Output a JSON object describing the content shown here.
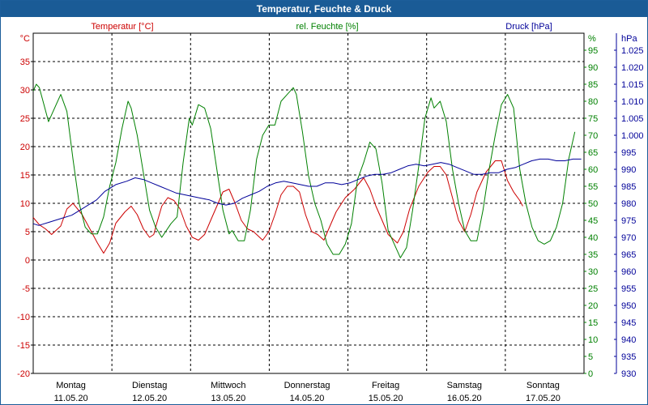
{
  "window": {
    "title": "Temperatur, Feuchte & Druck"
  },
  "chart_data": {
    "type": "line",
    "title": "Temperatur, Feuchte & Druck",
    "days": [
      {
        "name": "Montag",
        "date": "11.05.20"
      },
      {
        "name": "Dienstag",
        "date": "12.05.20"
      },
      {
        "name": "Mittwoch",
        "date": "13.05.20"
      },
      {
        "name": "Donnerstag",
        "date": "14.05.20"
      },
      {
        "name": "Freitag",
        "date": "15.05.20"
      },
      {
        "name": "Samstag",
        "date": "16.05.20"
      },
      {
        "name": "Sonntag",
        "date": "17.05.20"
      }
    ],
    "x_range_days": [
      0,
      7
    ],
    "axes": {
      "temperature": {
        "unit": "°C",
        "label": "Temperatur [°C]",
        "min": -20,
        "max": 40,
        "ticks": [
          -20,
          -15,
          -10,
          -5,
          0,
          5,
          10,
          15,
          20,
          25,
          30,
          35
        ],
        "color": "#cc0000"
      },
      "humidity": {
        "unit": "%",
        "label": "rel. Feuchte [%]",
        "min": 0,
        "max": 100,
        "ticks": [
          0,
          5,
          10,
          15,
          20,
          25,
          30,
          35,
          40,
          45,
          50,
          55,
          60,
          65,
          70,
          75,
          80,
          85,
          90,
          95
        ],
        "color": "#008000"
      },
      "pressure": {
        "unit": "hPa",
        "label": "Druck [hPa]",
        "min": 930,
        "max": 1030,
        "ticks": [
          "930",
          "935",
          "940",
          "945",
          "950",
          "955",
          "960",
          "965",
          "970",
          "975",
          "980",
          "985",
          "990",
          "995",
          "1.000",
          "1.005",
          "1.010",
          "1.015",
          "1.020",
          "1.025"
        ],
        "color": "#000099"
      }
    },
    "series": [
      {
        "name": "Temperatur [°C]",
        "axis": "temperature",
        "color": "#cc0000",
        "points": [
          [
            0.0,
            7.5
          ],
          [
            0.1,
            6.2
          ],
          [
            0.2,
            5.5
          ],
          [
            0.3,
            4.5
          ],
          [
            0.45,
            6
          ],
          [
            0.55,
            9
          ],
          [
            0.65,
            10
          ],
          [
            0.8,
            8
          ],
          [
            0.95,
            5
          ],
          [
            1.05,
            3
          ],
          [
            1.15,
            1.2
          ],
          [
            1.25,
            3
          ],
          [
            1.35,
            6.5
          ],
          [
            1.5,
            8.5
          ],
          [
            1.6,
            9.5
          ],
          [
            1.7,
            8
          ],
          [
            1.8,
            5.5
          ],
          [
            1.9,
            4
          ],
          [
            1.97,
            4.5
          ],
          [
            2.02,
            6.5
          ],
          [
            2.1,
            9.5
          ],
          [
            2.2,
            11
          ],
          [
            2.3,
            10.5
          ],
          [
            2.4,
            9
          ],
          [
            2.5,
            6
          ],
          [
            2.6,
            4
          ],
          [
            2.7,
            3.5
          ],
          [
            2.8,
            4.5
          ],
          [
            2.9,
            7
          ],
          [
            3.0,
            9.5
          ],
          [
            3.1,
            12
          ],
          [
            3.2,
            12.5
          ],
          [
            3.3,
            10
          ],
          [
            3.4,
            7
          ],
          [
            3.5,
            5.5
          ],
          [
            3.6,
            5
          ],
          [
            3.75,
            3.5
          ],
          [
            3.85,
            5
          ],
          [
            3.95,
            8
          ],
          [
            4.05,
            11.5
          ],
          [
            4.15,
            13
          ],
          [
            4.25,
            13
          ],
          [
            4.35,
            12
          ],
          [
            4.45,
            8
          ],
          [
            4.55,
            5
          ],
          [
            4.65,
            4.5
          ],
          [
            4.75,
            3.5
          ],
          [
            4.85,
            6
          ],
          [
            4.95,
            8.5
          ],
          [
            5.1,
            11
          ],
          [
            5.25,
            12.5
          ],
          [
            5.4,
            14.5
          ],
          [
            5.5,
            12.5
          ],
          [
            5.6,
            9.5
          ],
          [
            5.7,
            7
          ],
          [
            5.8,
            4.5
          ],
          [
            5.95,
            3
          ],
          [
            6.05,
            5
          ],
          [
            6.15,
            9
          ],
          [
            6.3,
            13
          ],
          [
            6.45,
            15.5
          ],
          [
            6.55,
            16.5
          ],
          [
            6.65,
            16.5
          ],
          [
            6.75,
            15
          ],
          [
            6.85,
            11
          ],
          [
            6.95,
            7
          ],
          [
            7.05,
            5
          ],
          [
            7.15,
            8
          ],
          [
            7.25,
            12
          ],
          [
            7.4,
            15.5
          ],
          [
            7.55,
            17.5
          ],
          [
            7.65,
            17.5
          ],
          [
            7.75,
            14
          ],
          [
            7.85,
            12
          ],
          [
            7.95,
            10.5
          ],
          [
            8.0,
            9.5
          ]
        ]
      },
      {
        "name": "rel. Feuchte [%]",
        "axis": "humidity",
        "color": "#008000",
        "points": [
          [
            0.0,
            83
          ],
          [
            0.05,
            85
          ],
          [
            0.1,
            84
          ],
          [
            0.25,
            74
          ],
          [
            0.35,
            78
          ],
          [
            0.45,
            82
          ],
          [
            0.55,
            77
          ],
          [
            0.65,
            63
          ],
          [
            0.75,
            50
          ],
          [
            0.85,
            43
          ],
          [
            0.95,
            41
          ],
          [
            1.05,
            41
          ],
          [
            1.15,
            46
          ],
          [
            1.25,
            55
          ],
          [
            1.35,
            62
          ],
          [
            1.45,
            72
          ],
          [
            1.55,
            80
          ],
          [
            1.6,
            78
          ],
          [
            1.7,
            70
          ],
          [
            1.8,
            59
          ],
          [
            1.9,
            48
          ],
          [
            2.0,
            43
          ],
          [
            2.1,
            40
          ],
          [
            2.25,
            44
          ],
          [
            2.35,
            46
          ],
          [
            2.45,
            62
          ],
          [
            2.55,
            75
          ],
          [
            2.6,
            73
          ],
          [
            2.7,
            79
          ],
          [
            2.8,
            78
          ],
          [
            2.9,
            72
          ],
          [
            3.0,
            60
          ],
          [
            3.1,
            48
          ],
          [
            3.2,
            41
          ],
          [
            3.25,
            42
          ],
          [
            3.35,
            39
          ],
          [
            3.45,
            39
          ],
          [
            3.55,
            48
          ],
          [
            3.65,
            63
          ],
          [
            3.75,
            70
          ],
          [
            3.85,
            73
          ],
          [
            3.95,
            73
          ],
          [
            4.05,
            80
          ],
          [
            4.15,
            82
          ],
          [
            4.25,
            84
          ],
          [
            4.3,
            82
          ],
          [
            4.4,
            71
          ],
          [
            4.5,
            58
          ],
          [
            4.6,
            50
          ],
          [
            4.7,
            45
          ],
          [
            4.8,
            38
          ],
          [
            4.9,
            35
          ],
          [
            5.0,
            35
          ],
          [
            5.1,
            38
          ],
          [
            5.2,
            44
          ],
          [
            5.3,
            57
          ],
          [
            5.4,
            62
          ],
          [
            5.5,
            68
          ],
          [
            5.6,
            66
          ],
          [
            5.7,
            56
          ],
          [
            5.8,
            42
          ],
          [
            5.9,
            38
          ],
          [
            6.0,
            34
          ],
          [
            6.1,
            37
          ],
          [
            6.2,
            48
          ],
          [
            6.3,
            61
          ],
          [
            6.4,
            75
          ],
          [
            6.5,
            81
          ],
          [
            6.55,
            78
          ],
          [
            6.65,
            80
          ],
          [
            6.75,
            74
          ],
          [
            6.85,
            60
          ],
          [
            6.95,
            50
          ],
          [
            7.05,
            42
          ],
          [
            7.15,
            39
          ],
          [
            7.25,
            39
          ],
          [
            7.35,
            48
          ],
          [
            7.45,
            60
          ],
          [
            7.55,
            70
          ],
          [
            7.65,
            79
          ],
          [
            7.75,
            82
          ],
          [
            7.85,
            78
          ],
          [
            7.95,
            60
          ],
          [
            8.05,
            50
          ],
          [
            8.15,
            43
          ],
          [
            8.25,
            39
          ],
          [
            8.35,
            38
          ],
          [
            8.45,
            39
          ],
          [
            8.55,
            43
          ],
          [
            8.65,
            50
          ],
          [
            8.75,
            63
          ],
          [
            8.85,
            71
          ]
        ]
      },
      {
        "name": "Druck [hPa]",
        "axis": "pressure",
        "color": "#000099",
        "points": [
          [
            0.0,
            974
          ],
          [
            0.1,
            973.5
          ],
          [
            0.3,
            974.5
          ],
          [
            0.5,
            975.5
          ],
          [
            0.7,
            976.5
          ],
          [
            0.85,
            978
          ],
          [
            1.0,
            979.5
          ],
          [
            1.15,
            981
          ],
          [
            1.3,
            983.5
          ],
          [
            1.5,
            985.5
          ],
          [
            1.7,
            986.5
          ],
          [
            1.85,
            987.5
          ],
          [
            2.0,
            987
          ],
          [
            2.15,
            986
          ],
          [
            2.3,
            985
          ],
          [
            2.45,
            984
          ],
          [
            2.6,
            983
          ],
          [
            2.75,
            982.5
          ],
          [
            2.9,
            982
          ],
          [
            3.05,
            981.5
          ],
          [
            3.2,
            981
          ],
          [
            3.35,
            980
          ],
          [
            3.5,
            979.5
          ],
          [
            3.65,
            980
          ],
          [
            3.8,
            981.5
          ],
          [
            3.95,
            982.5
          ],
          [
            4.1,
            983.5
          ],
          [
            4.25,
            985
          ],
          [
            4.4,
            986
          ],
          [
            4.55,
            986.5
          ],
          [
            4.7,
            986
          ],
          [
            4.85,
            985.5
          ],
          [
            5.0,
            985
          ],
          [
            5.15,
            985
          ],
          [
            5.3,
            986
          ],
          [
            5.45,
            986
          ],
          [
            5.6,
            985.5
          ],
          [
            5.75,
            986
          ],
          [
            5.9,
            987
          ],
          [
            6.05,
            988
          ],
          [
            6.2,
            988.5
          ],
          [
            6.35,
            988.5
          ],
          [
            6.5,
            989
          ],
          [
            6.65,
            990
          ],
          [
            6.8,
            991
          ],
          [
            6.95,
            991.5
          ],
          [
            7.1,
            991
          ],
          [
            7.25,
            991.5
          ],
          [
            7.4,
            992
          ],
          [
            7.55,
            991.5
          ],
          [
            7.7,
            990.5
          ],
          [
            7.85,
            989.5
          ],
          [
            8.0,
            988.5
          ],
          [
            8.15,
            988.5
          ],
          [
            8.3,
            989
          ],
          [
            8.45,
            989
          ],
          [
            8.6,
            990
          ],
          [
            8.75,
            990.5
          ],
          [
            8.9,
            991.5
          ],
          [
            9.05,
            992.5
          ],
          [
            9.2,
            993
          ],
          [
            9.35,
            993
          ],
          [
            9.5,
            992.5
          ],
          [
            9.65,
            992.5
          ],
          [
            9.8,
            993
          ],
          [
            9.95,
            993
          ]
        ]
      }
    ],
    "series_x_scale_note": "x values are in day units; temperature and humidity span days 0–8.85 on a 7-day axis scaled to 9, pressure spans 0–9.95 on a 10-day scale"
  }
}
